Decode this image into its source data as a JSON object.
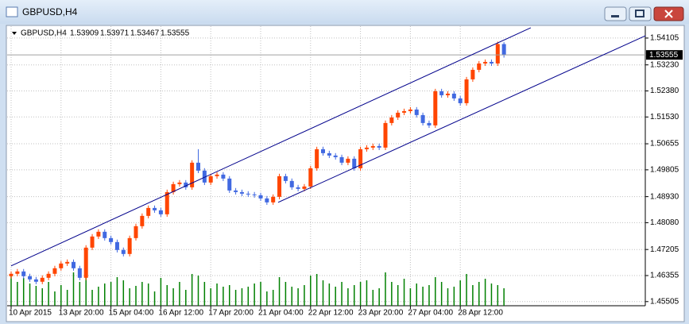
{
  "window": {
    "title": "GBPUSD,H4"
  },
  "chart_data": {
    "type": "candlestick",
    "title": "GBPUSD,H4",
    "categories": [
      "10 Apr 2015",
      null,
      null,
      null,
      null,
      null,
      null,
      null,
      "13 Apr 20:00",
      null,
      null,
      null,
      null,
      null,
      null,
      null,
      "15 Apr 04:00",
      null,
      null,
      null,
      null,
      null,
      null,
      null,
      "16 Apr 12:00",
      null,
      null,
      null,
      null,
      null,
      null,
      null,
      "17 Apr 20:00",
      null,
      null,
      null,
      null,
      null,
      null,
      null,
      "21 Apr 04:00",
      null,
      null,
      null,
      null,
      null,
      null,
      null,
      "22 Apr 12:00",
      null,
      null,
      null,
      null,
      null,
      null,
      null,
      "23 Apr 20:00",
      null,
      null,
      null,
      null,
      null,
      null,
      null,
      "27 Apr 04:00",
      null,
      null,
      null,
      null,
      null,
      null,
      null,
      "28 Apr 12:00",
      null,
      null,
      null,
      null,
      null,
      null,
      null
    ],
    "open": [
      1.46334,
      1.46412,
      1.46489,
      1.46334,
      1.4623,
      1.46153,
      1.46282,
      1.46412,
      1.46593,
      1.46748,
      1.468,
      1.46593,
      1.46282,
      1.47266,
      1.47629,
      1.47784,
      1.47577,
      1.47448,
      1.47189,
      1.47059,
      1.47577,
      1.47966,
      1.48302,
      1.48561,
      1.48484,
      1.48354,
      1.49079,
      1.49338,
      1.4939,
      1.49235,
      1.50038,
      1.49779,
      1.4939,
      1.49597,
      1.49649,
      1.4952,
      1.49131,
      1.49079,
      1.49027,
      1.49002,
      1.48976,
      1.48872,
      1.48743,
      1.48924,
      1.49597,
      1.49442,
      1.49235,
      1.49183,
      1.49261,
      1.49856,
      1.50478,
      1.50348,
      1.50271,
      1.50219,
      1.50038,
      1.50167,
      1.49856,
      1.50478,
      1.5053,
      1.50581,
      1.5053,
      1.51333,
      1.51514,
      1.51669,
      1.51721,
      1.51773,
      1.51592,
      1.51333,
      1.51255,
      1.52369,
      1.52239,
      1.52291,
      1.52135,
      1.5198,
      1.52757,
      1.53068,
      1.53275,
      1.53327,
      1.53275,
      1.53909
    ],
    "high": [
      1.46492,
      1.46569,
      1.46569,
      1.46414,
      1.4631,
      1.46362,
      1.46492,
      1.46673,
      1.46828,
      1.4688,
      1.4688,
      1.46673,
      1.47346,
      1.47709,
      1.47864,
      1.47864,
      1.47657,
      1.47528,
      1.47269,
      1.47657,
      1.48046,
      1.48382,
      1.48641,
      1.48641,
      1.48564,
      1.49159,
      1.49418,
      1.4947,
      1.4947,
      1.50118,
      1.50478,
      1.49859,
      1.49677,
      1.49729,
      1.49729,
      1.496,
      1.49211,
      1.49159,
      1.49107,
      1.49082,
      1.49056,
      1.48952,
      1.49004,
      1.49677,
      1.49677,
      1.49522,
      1.49315,
      1.49341,
      1.49936,
      1.50558,
      1.50558,
      1.50428,
      1.50351,
      1.50299,
      1.50247,
      1.50247,
      1.50558,
      1.5061,
      1.50661,
      1.50661,
      1.51413,
      1.51594,
      1.51749,
      1.51801,
      1.51853,
      1.51853,
      1.51672,
      1.51413,
      1.52449,
      1.52449,
      1.52371,
      1.52371,
      1.52215,
      1.52837,
      1.53148,
      1.53355,
      1.53407,
      1.53407,
      1.53989,
      1.53971
    ],
    "low": [
      1.46254,
      1.46332,
      1.46254,
      1.4615,
      1.46073,
      1.46073,
      1.46202,
      1.46332,
      1.46513,
      1.46668,
      1.46513,
      1.46202,
      1.46202,
      1.47186,
      1.47549,
      1.47497,
      1.47368,
      1.47109,
      1.46979,
      1.46979,
      1.47497,
      1.47886,
      1.48222,
      1.48404,
      1.48274,
      1.48274,
      1.48999,
      1.49258,
      1.49155,
      1.49155,
      1.49699,
      1.4931,
      1.4931,
      1.49517,
      1.4944,
      1.49051,
      1.48999,
      1.48947,
      1.48922,
      1.48896,
      1.48792,
      1.48663,
      1.48663,
      1.48844,
      1.49362,
      1.49155,
      1.49103,
      1.49103,
      1.49181,
      1.49776,
      1.50268,
      1.50191,
      1.50139,
      1.49958,
      1.49958,
      1.49776,
      1.49776,
      1.50398,
      1.5045,
      1.5045,
      1.5045,
      1.51253,
      1.51434,
      1.51589,
      1.51641,
      1.51512,
      1.51253,
      1.51175,
      1.51175,
      1.52159,
      1.52159,
      1.52055,
      1.519,
      1.519,
      1.52677,
      1.52988,
      1.53195,
      1.53195,
      1.53195,
      1.53467
    ],
    "close": [
      1.46412,
      1.46489,
      1.46334,
      1.4623,
      1.46153,
      1.46282,
      1.46412,
      1.46593,
      1.46748,
      1.468,
      1.46593,
      1.46282,
      1.47266,
      1.47629,
      1.47784,
      1.47577,
      1.47448,
      1.47189,
      1.47059,
      1.47577,
      1.47966,
      1.48302,
      1.48561,
      1.48484,
      1.48354,
      1.49079,
      1.49338,
      1.4939,
      1.49235,
      1.50038,
      1.49779,
      1.4939,
      1.49597,
      1.49649,
      1.4952,
      1.49131,
      1.49079,
      1.49027,
      1.49002,
      1.48976,
      1.48872,
      1.48743,
      1.48924,
      1.49597,
      1.49442,
      1.49235,
      1.49183,
      1.49261,
      1.49856,
      1.50478,
      1.50348,
      1.50271,
      1.50219,
      1.50038,
      1.50167,
      1.49856,
      1.50478,
      1.5053,
      1.50581,
      1.5053,
      1.51333,
      1.51514,
      1.51669,
      1.51721,
      1.51773,
      1.51592,
      1.51333,
      1.51255,
      1.52369,
      1.52239,
      1.52291,
      1.52135,
      1.5198,
      1.52757,
      1.53068,
      1.53275,
      1.53327,
      1.53275,
      1.53909,
      1.53555
    ],
    "volume": [
      40,
      30,
      35,
      28,
      25,
      22,
      30,
      18,
      26,
      20,
      42,
      30,
      45,
      20,
      24,
      28,
      30,
      36,
      32,
      22,
      25,
      30,
      28,
      18,
      35,
      26,
      22,
      30,
      20,
      40,
      38,
      30,
      22,
      28,
      24,
      26,
      20,
      22,
      24,
      28,
      30,
      18,
      20,
      36,
      30,
      24,
      22,
      26,
      38,
      40,
      32,
      28,
      24,
      30,
      22,
      26,
      30,
      32,
      20,
      22,
      42,
      30,
      26,
      34,
      22,
      28,
      24,
      26,
      36,
      30,
      22,
      24,
      32,
      40,
      26,
      30,
      34,
      28,
      26,
      22
    ],
    "up_color": "#ff4500",
    "down_color": "#4169e1",
    "volume_color": "#008000",
    "trendlines": [
      {
        "points": [
          [
            0,
            1.46671
          ],
          [
            83.3,
            1.54441
          ]
        ],
        "color": "#00008b"
      },
      {
        "points": [
          [
            42.8,
            1.48743
          ],
          [
            101.7,
            1.54182
          ]
        ],
        "color": "#00008b"
      }
    ],
    "ylim": [
      1.4537,
      1.5444
    ],
    "yticks": [
      1.54105,
      {
        "value": 1.5323,
        "label": "1.53230"
      },
      {
        "value": 1.5238,
        "label": "1.52380"
      },
      {
        "value": 1.5153,
        "label": "1.51530"
      },
      1.50655,
      1.49805,
      {
        "value": 1.4893,
        "label": "1.48930"
      },
      {
        "value": 1.4808,
        "label": "1.48080"
      },
      1.47205,
      1.46355,
      1.45505
    ],
    "grid": true
  }
}
